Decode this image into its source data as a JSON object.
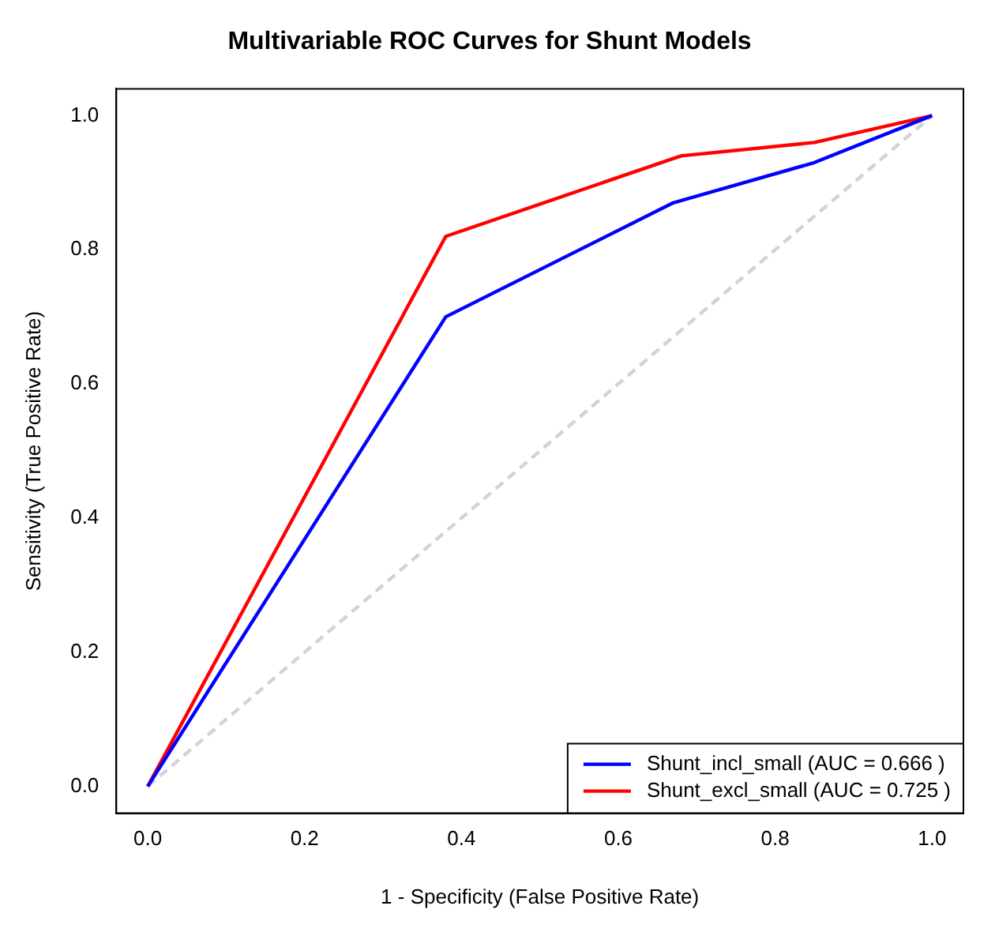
{
  "chart_data": {
    "type": "line",
    "title": "Multivariable ROC Curves for Shunt Models",
    "xlabel": "1 - Specificity (False Positive Rate)",
    "ylabel": "Sensitivity (True Positive Rate)",
    "xlim": [
      -0.04,
      1.04
    ],
    "ylim": [
      -0.04,
      1.04
    ],
    "xticks": [
      {
        "value": 0,
        "label": "0.0"
      },
      {
        "value": 0.2,
        "label": "0.2"
      },
      {
        "value": 0.4,
        "label": "0.4"
      },
      {
        "value": 0.6,
        "label": "0.6"
      },
      {
        "value": 0.8,
        "label": "0.8"
      },
      {
        "value": 1,
        "label": "1.0"
      }
    ],
    "yticks": [
      {
        "value": 0,
        "label": "0.0"
      },
      {
        "value": 0.2,
        "label": "0.2"
      },
      {
        "value": 0.4,
        "label": "0.4"
      },
      {
        "value": 0.6,
        "label": "0.6"
      },
      {
        "value": 0.8,
        "label": "0.8"
      },
      {
        "value": 1,
        "label": "1.0"
      }
    ],
    "grid": false,
    "legend": "bottom right",
    "marker": "none",
    "series": [
      {
        "name": "Shunt_incl_small (AUC = 0.666 )",
        "color": "#0000ff",
        "x": [
          0,
          0.38,
          0.67,
          0.85,
          1
        ],
        "values": [
          0,
          0.7,
          0.87,
          0.93,
          1
        ],
        "line_style": "solid"
      },
      {
        "name": "Shunt_excl_small (AUC = 0.725 )",
        "color": "#ff0000",
        "x": [
          0,
          0.38,
          0.68,
          0.85,
          1
        ],
        "values": [
          0,
          0.82,
          0.94,
          0.96,
          1
        ],
        "line_style": "solid"
      },
      {
        "color": "#d3d3d3",
        "x": [
          0,
          1
        ],
        "values": [
          0,
          1
        ],
        "line_style": "dashed"
      }
    ]
  }
}
